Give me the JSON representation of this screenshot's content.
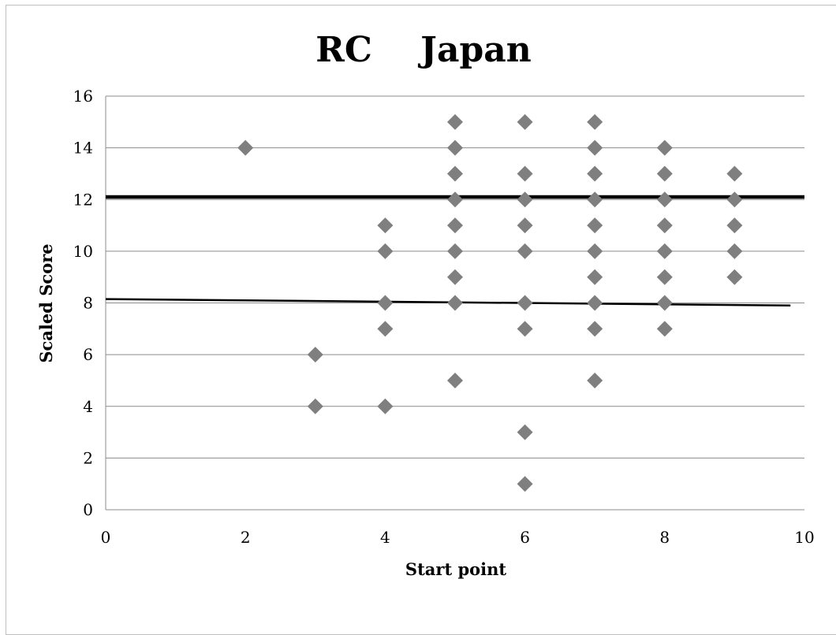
{
  "chart_data": {
    "type": "scatter",
    "title": "RC    Japan",
    "xlabel": "Start point",
    "ylabel": "Scaled Score",
    "xlim": [
      0,
      10
    ],
    "ylim": [
      0,
      16
    ],
    "xticks": [
      "0",
      "2",
      "4",
      "6",
      "8",
      "10"
    ],
    "yticks": [
      "0",
      "2",
      "4",
      "6",
      "8",
      "10",
      "12",
      "14",
      "16"
    ],
    "grid": "horizontal",
    "legend": "none",
    "marker": "diamond",
    "marker_color": "#7f7f7f",
    "points": [
      {
        "x": 2,
        "y": 14
      },
      {
        "x": 3,
        "y": 6
      },
      {
        "x": 3,
        "y": 4
      },
      {
        "x": 4,
        "y": 11
      },
      {
        "x": 4,
        "y": 10
      },
      {
        "x": 4,
        "y": 8
      },
      {
        "x": 4,
        "y": 7
      },
      {
        "x": 4,
        "y": 4
      },
      {
        "x": 5,
        "y": 15
      },
      {
        "x": 5,
        "y": 14
      },
      {
        "x": 5,
        "y": 13
      },
      {
        "x": 5,
        "y": 12
      },
      {
        "x": 5,
        "y": 11
      },
      {
        "x": 5,
        "y": 10
      },
      {
        "x": 5,
        "y": 9
      },
      {
        "x": 5,
        "y": 8
      },
      {
        "x": 5,
        "y": 5
      },
      {
        "x": 6,
        "y": 15
      },
      {
        "x": 6,
        "y": 13
      },
      {
        "x": 6,
        "y": 12
      },
      {
        "x": 6,
        "y": 11
      },
      {
        "x": 6,
        "y": 10
      },
      {
        "x": 6,
        "y": 8
      },
      {
        "x": 6,
        "y": 7
      },
      {
        "x": 6,
        "y": 3
      },
      {
        "x": 6,
        "y": 1
      },
      {
        "x": 7,
        "y": 15
      },
      {
        "x": 7,
        "y": 14
      },
      {
        "x": 7,
        "y": 13
      },
      {
        "x": 7,
        "y": 12
      },
      {
        "x": 7,
        "y": 11
      },
      {
        "x": 7,
        "y": 10
      },
      {
        "x": 7,
        "y": 9
      },
      {
        "x": 7,
        "y": 8
      },
      {
        "x": 7,
        "y": 7
      },
      {
        "x": 7,
        "y": 5
      },
      {
        "x": 8,
        "y": 14
      },
      {
        "x": 8,
        "y": 13
      },
      {
        "x": 8,
        "y": 12
      },
      {
        "x": 8,
        "y": 11
      },
      {
        "x": 8,
        "y": 10
      },
      {
        "x": 8,
        "y": 9
      },
      {
        "x": 8,
        "y": 8
      },
      {
        "x": 8,
        "y": 7
      },
      {
        "x": 9,
        "y": 13
      },
      {
        "x": 9,
        "y": 12
      },
      {
        "x": 9,
        "y": 11
      },
      {
        "x": 9,
        "y": 10
      },
      {
        "x": 9,
        "y": 9
      }
    ],
    "reference_lines": [
      {
        "type": "horizontal",
        "y": 12.1,
        "x_range": [
          0,
          10
        ],
        "color": "#000000",
        "weight": "thick"
      },
      {
        "type": "trendline",
        "x": [
          0,
          9.8
        ],
        "y": [
          8.15,
          7.9
        ],
        "color": "#000000",
        "weight": "normal"
      }
    ]
  }
}
